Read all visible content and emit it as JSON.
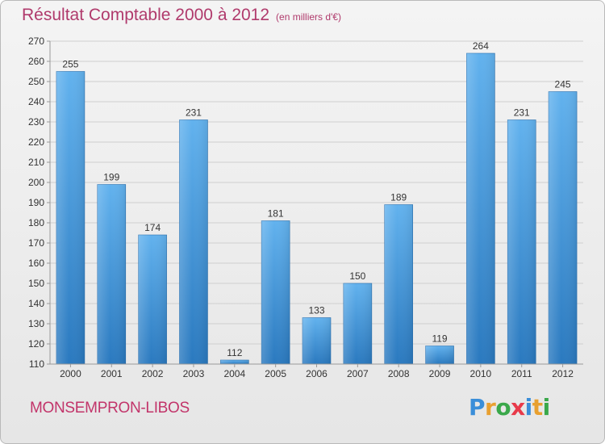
{
  "title": "Résultat Comptable 2000 à 2012",
  "subtitle": "(en milliers d'€)",
  "location": "MONSEMPRON-LIBOS",
  "logo": {
    "text": "Proxiti",
    "letter_colors": [
      "#3a8ed9",
      "#e8a030",
      "#3aa84a",
      "#e83a4a",
      "#3a8ed9",
      "#e8a030",
      "#3aa84a"
    ]
  },
  "colors": {
    "title": "#b03a6c",
    "bar_light": "#62b2ee",
    "bar_dark": "#2a79bf",
    "grid": "#cfcfcf",
    "axis_text": "#333333"
  },
  "chart_data": {
    "type": "bar",
    "title": "Résultat Comptable 2000 à 2012",
    "subtitle": "(en milliers d'€)",
    "categories": [
      "2000",
      "2001",
      "2002",
      "2003",
      "2004",
      "2005",
      "2006",
      "2007",
      "2008",
      "2009",
      "2010",
      "2011",
      "2012"
    ],
    "values": [
      255,
      199,
      174,
      231,
      112,
      181,
      133,
      150,
      189,
      119,
      264,
      231,
      245
    ],
    "data_labels": [
      "255",
      "199",
      "174",
      "231",
      "112",
      "181",
      "133",
      "150",
      "189",
      "119",
      "264",
      "231",
      "245"
    ],
    "y_ticks": [
      110,
      120,
      130,
      140,
      150,
      160,
      170,
      180,
      190,
      200,
      210,
      220,
      230,
      240,
      250,
      260,
      270
    ],
    "ylim": [
      110,
      270
    ],
    "xlabel": "",
    "ylabel": "",
    "grid": true,
    "legend": "none"
  }
}
